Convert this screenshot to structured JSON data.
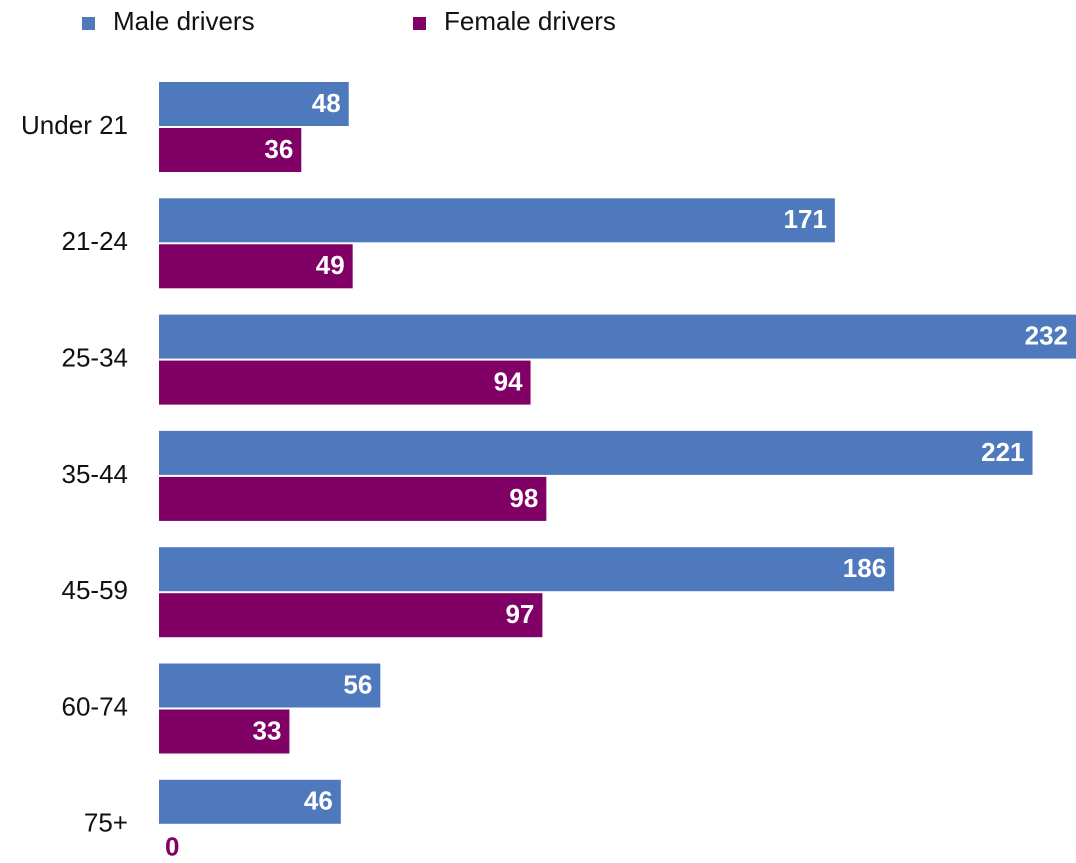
{
  "chart_data": {
    "type": "bar",
    "orientation": "horizontal",
    "categories": [
      "Under 21",
      "21-24",
      "25-34",
      "35-44",
      "45-59",
      "60-74",
      "75+"
    ],
    "series": [
      {
        "name": "Male drivers",
        "color": "#4f79bd",
        "values": [
          48,
          171,
          232,
          221,
          186,
          56,
          46
        ]
      },
      {
        "name": "Female drivers",
        "color": "#800066",
        "values": [
          36,
          49,
          94,
          98,
          97,
          33,
          0
        ]
      }
    ],
    "legend": "top"
  }
}
